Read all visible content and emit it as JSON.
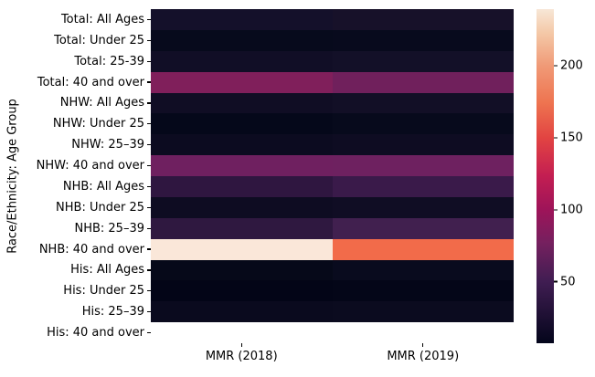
{
  "figure": {
    "background": "#ffffff",
    "text_color": "#000000"
  },
  "chart_data": {
    "type": "heatmap",
    "colormap": "rocket",
    "title": "",
    "xlabel": "",
    "ylabel": "Race/Ethnicity: Age Group",
    "columns": [
      "MMR (2018)",
      "MMR (2019)"
    ],
    "rows": [
      "Total: All Ages",
      "Total: Under 25",
      "Total: 25-39",
      "Total: 40 and over",
      "NHW: All Ages",
      "NHW: Under 25",
      "NHW: 25–39",
      "NHW: 40 and over",
      "NHB: All Ages",
      "NHB: Under 25",
      "NHB: 25–39",
      "NHB: 40 and over",
      "His: All Ages",
      "His: Under 25",
      "His: 25–39",
      "His: 40 and over"
    ],
    "series": [
      {
        "name": "MMR (2018)",
        "values": [
          17.4,
          10.6,
          16.6,
          81.9,
          14.9,
          9,
          13,
          73,
          37.3,
          14,
          37,
          239,
          10,
          7.2,
          11,
          null
        ]
      },
      {
        "name": "MMR (2019)",
        "values": [
          20.1,
          12.6,
          19.9,
          75.5,
          17.9,
          10.5,
          13.5,
          73,
          44.0,
          14.5,
          50,
          160,
          12,
          8,
          12,
          null
        ]
      }
    ],
    "cell_colors": [
      [
        "#14102a",
        "#070a1c",
        "#110e26",
        "#801f5b",
        "#100d24",
        "#05081a",
        "#0c0b20",
        "#6f2060",
        "#2f1640",
        "#0e0c22",
        "#2f1840",
        "#fae7d9",
        "#060919",
        "#030517",
        "#0a0a1e",
        null
      ],
      [
        "#171129",
        "#080a1d",
        "#131028",
        "#70205c",
        "#120f26",
        "#070a1c",
        "#0e0c22",
        "#6e2160",
        "#3a1a4a",
        "#100d24",
        "#41204f",
        "#f26b4a",
        "#090b1e",
        "#040618",
        "#0b0b1f",
        null
      ]
    ],
    "colorbar": {
      "vmin": 7.2,
      "vmax": 239.5,
      "ticks": [
        200,
        150,
        100,
        50
      ],
      "gradient_stops": [
        [
          0.0,
          "#03051b"
        ],
        [
          0.184,
          "#401d52"
        ],
        [
          0.3,
          "#75205f"
        ],
        [
          0.4,
          "#9e1459"
        ],
        [
          0.5,
          "#c31e52"
        ],
        [
          0.615,
          "#e24442"
        ],
        [
          0.72,
          "#ee7450"
        ],
        [
          0.831,
          "#f09a77"
        ],
        [
          0.93,
          "#f4c9a8"
        ],
        [
          1.0,
          "#f7e7d7"
        ]
      ]
    },
    "legend": "colorbar-right",
    "grid": false
  }
}
